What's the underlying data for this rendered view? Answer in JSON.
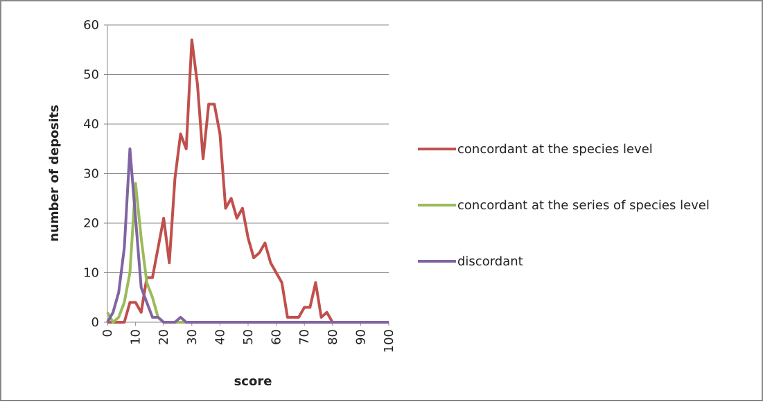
{
  "chart_data": {
    "type": "line",
    "x_label": "score",
    "y_label": "number of deposits",
    "x": [
      0,
      2,
      4,
      6,
      8,
      10,
      12,
      14,
      16,
      18,
      20,
      22,
      24,
      26,
      28,
      30,
      32,
      34,
      36,
      38,
      40,
      42,
      44,
      46,
      48,
      50,
      52,
      54,
      56,
      58,
      60,
      62,
      64,
      66,
      68,
      70,
      72,
      74,
      76,
      78,
      80,
      82,
      84,
      86,
      88,
      90,
      92,
      94,
      96,
      98,
      100
    ],
    "series": [
      {
        "name": "concordant at the species level",
        "color": "#c0504d",
        "values": [
          0,
          0,
          0,
          0,
          4,
          4,
          2,
          9,
          9,
          15,
          21,
          12,
          29,
          38,
          35,
          57,
          48,
          33,
          44,
          44,
          38,
          23,
          25,
          21,
          23,
          17,
          13,
          14,
          16,
          12,
          10,
          8,
          1,
          1,
          1,
          3,
          3,
          8,
          1,
          2,
          0,
          0,
          0,
          0,
          0,
          0,
          0,
          0,
          0,
          0,
          0
        ]
      },
      {
        "name": "concordant at the series of species level",
        "color": "#9bbb59",
        "values": [
          2,
          0,
          1,
          4,
          10,
          28,
          17,
          8,
          5,
          1,
          0,
          0,
          0,
          0,
          0,
          0,
          0,
          0,
          0,
          0,
          0,
          0,
          0,
          0,
          0,
          0,
          0,
          0,
          0,
          0,
          0,
          0,
          0,
          0,
          0,
          0,
          0,
          0,
          0,
          0,
          0,
          0,
          0,
          0,
          0,
          0,
          0,
          0,
          0,
          0,
          0
        ]
      },
      {
        "name": "discordant",
        "color": "#8064a2",
        "values": [
          0,
          2,
          6,
          15,
          35,
          21,
          7,
          4,
          1,
          1,
          0,
          0,
          0,
          1,
          0,
          0,
          0,
          0,
          0,
          0,
          0,
          0,
          0,
          0,
          0,
          0,
          0,
          0,
          0,
          0,
          0,
          0,
          0,
          0,
          0,
          0,
          0,
          0,
          0,
          0,
          0,
          0,
          0,
          0,
          0,
          0,
          0,
          0,
          0,
          0,
          0
        ]
      }
    ],
    "xlim": [
      0,
      100
    ],
    "xticks": [
      0,
      10,
      20,
      30,
      40,
      50,
      60,
      70,
      80,
      90,
      100
    ],
    "ylim": [
      0,
      60
    ],
    "yticks": [
      0,
      10,
      20,
      30,
      40,
      50,
      60
    ],
    "grid": true,
    "legend": "right"
  }
}
